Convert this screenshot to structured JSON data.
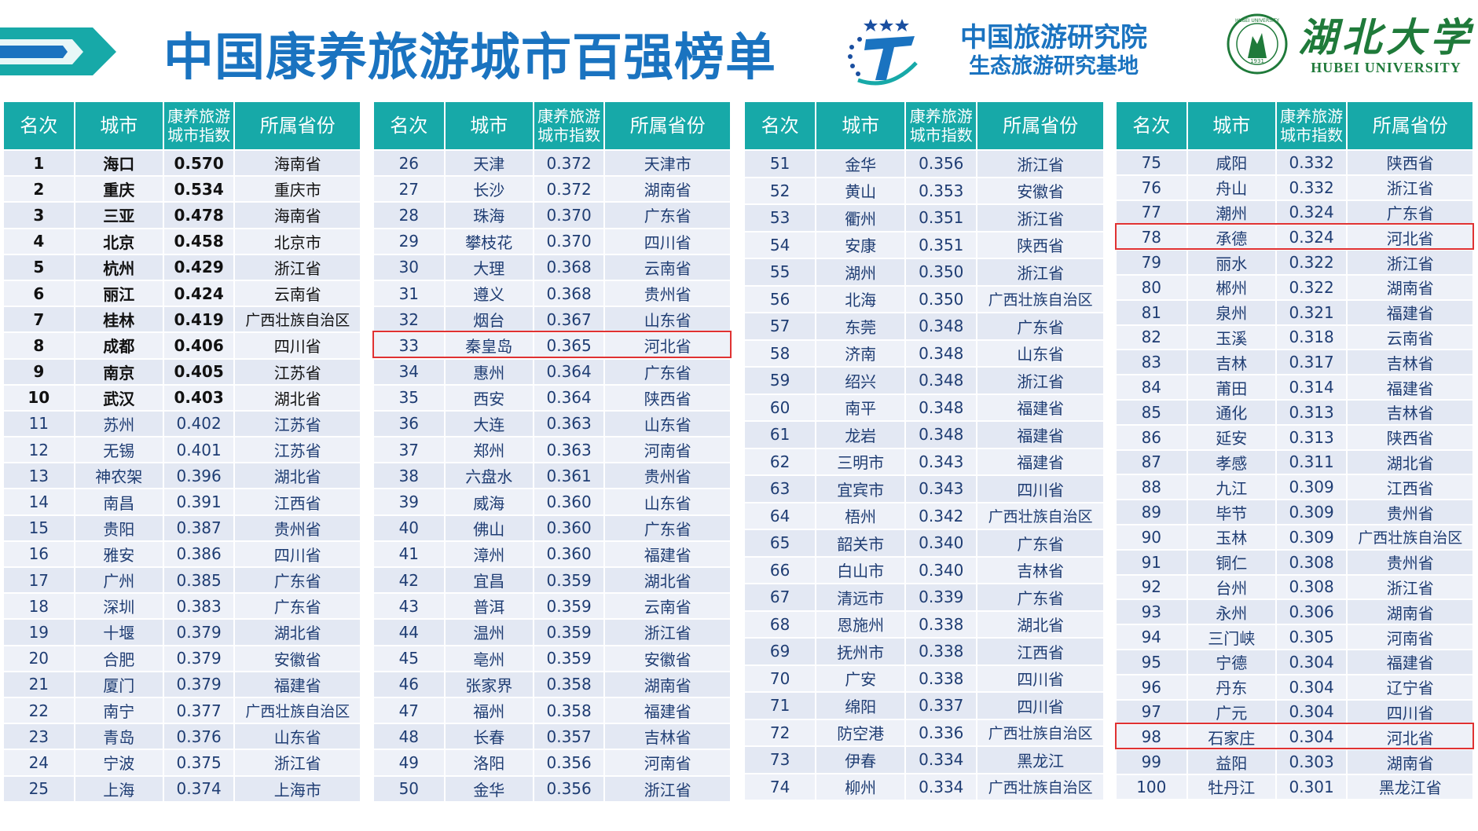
{
  "header": {
    "title": "中国康养旅游城市百强榜单",
    "institute_line1": "中国旅游研究院",
    "institute_line2": "生态旅游研究基地",
    "university_cn": "湖北大学",
    "university_en": "HUBEI UNIVERSITY",
    "seal_text": "HUBEI UNIVERSITY",
    "seal_year": "1931"
  },
  "colors": {
    "title": "#1a73c0",
    "header_bg": "#17a9a8",
    "highlight": "#e03232",
    "university": "#1f7a3a"
  },
  "table_headers": {
    "rank": "名次",
    "city": "城市",
    "index": "康养旅游城市指数",
    "province": "所属省份"
  },
  "rows": [
    [
      "1",
      "海口",
      "0.570",
      "海南省"
    ],
    [
      "2",
      "重庆",
      "0.534",
      "重庆市"
    ],
    [
      "3",
      "三亚",
      "0.478",
      "海南省"
    ],
    [
      "4",
      "北京",
      "0.458",
      "北京市"
    ],
    [
      "5",
      "杭州",
      "0.429",
      "浙江省"
    ],
    [
      "6",
      "丽江",
      "0.424",
      "云南省"
    ],
    [
      "7",
      "桂林",
      "0.419",
      "广西壮族自治区"
    ],
    [
      "8",
      "成都",
      "0.406",
      "四川省"
    ],
    [
      "9",
      "南京",
      "0.405",
      "江苏省"
    ],
    [
      "10",
      "武汉",
      "0.403",
      "湖北省"
    ],
    [
      "11",
      "苏州",
      "0.402",
      "江苏省"
    ],
    [
      "12",
      "无锡",
      "0.401",
      "江苏省"
    ],
    [
      "13",
      "神农架",
      "0.396",
      "湖北省"
    ],
    [
      "14",
      "南昌",
      "0.391",
      "江西省"
    ],
    [
      "15",
      "贵阳",
      "0.387",
      "贵州省"
    ],
    [
      "16",
      "雅安",
      "0.386",
      "四川省"
    ],
    [
      "17",
      "广州",
      "0.385",
      "广东省"
    ],
    [
      "18",
      "深圳",
      "0.383",
      "广东省"
    ],
    [
      "19",
      "十堰",
      "0.379",
      "湖北省"
    ],
    [
      "20",
      "合肥",
      "0.379",
      "安徽省"
    ],
    [
      "21",
      "厦门",
      "0.379",
      "福建省"
    ],
    [
      "22",
      "南宁",
      "0.377",
      "广西壮族自治区"
    ],
    [
      "23",
      "青岛",
      "0.376",
      "山东省"
    ],
    [
      "24",
      "宁波",
      "0.375",
      "浙江省"
    ],
    [
      "25",
      "上海",
      "0.374",
      "上海市"
    ],
    [
      "26",
      "天津",
      "0.372",
      "天津市"
    ],
    [
      "27",
      "长沙",
      "0.372",
      "湖南省"
    ],
    [
      "28",
      "珠海",
      "0.370",
      "广东省"
    ],
    [
      "29",
      "攀枝花",
      "0.370",
      "四川省"
    ],
    [
      "30",
      "大理",
      "0.368",
      "云南省"
    ],
    [
      "31",
      "遵义",
      "0.368",
      "贵州省"
    ],
    [
      "32",
      "烟台",
      "0.367",
      "山东省"
    ],
    [
      "33",
      "秦皇岛",
      "0.365",
      "河北省"
    ],
    [
      "34",
      "惠州",
      "0.364",
      "广东省"
    ],
    [
      "35",
      "西安",
      "0.364",
      "陕西省"
    ],
    [
      "36",
      "大连",
      "0.363",
      "山东省"
    ],
    [
      "37",
      "郑州",
      "0.363",
      "河南省"
    ],
    [
      "38",
      "六盘水",
      "0.361",
      "贵州省"
    ],
    [
      "39",
      "威海",
      "0.360",
      "山东省"
    ],
    [
      "40",
      "佛山",
      "0.360",
      "广东省"
    ],
    [
      "41",
      "漳州",
      "0.360",
      "福建省"
    ],
    [
      "42",
      "宜昌",
      "0.359",
      "湖北省"
    ],
    [
      "43",
      "普洱",
      "0.359",
      "云南省"
    ],
    [
      "44",
      "温州",
      "0.359",
      "浙江省"
    ],
    [
      "45",
      "亳州",
      "0.359",
      "安徽省"
    ],
    [
      "46",
      "张家界",
      "0.358",
      "湖南省"
    ],
    [
      "47",
      "福州",
      "0.358",
      "福建省"
    ],
    [
      "48",
      "长春",
      "0.357",
      "吉林省"
    ],
    [
      "49",
      "洛阳",
      "0.356",
      "河南省"
    ],
    [
      "50",
      "金华",
      "0.356",
      "浙江省"
    ],
    [
      "51",
      "金华",
      "0.356",
      "浙江省"
    ],
    [
      "52",
      "黄山",
      "0.353",
      "安徽省"
    ],
    [
      "53",
      "衢州",
      "0.351",
      "浙江省"
    ],
    [
      "54",
      "安康",
      "0.351",
      "陕西省"
    ],
    [
      "55",
      "湖州",
      "0.350",
      "浙江省"
    ],
    [
      "56",
      "北海",
      "0.350",
      "广西壮族自治区"
    ],
    [
      "57",
      "东莞",
      "0.348",
      "广东省"
    ],
    [
      "58",
      "济南",
      "0.348",
      "山东省"
    ],
    [
      "59",
      "绍兴",
      "0.348",
      "浙江省"
    ],
    [
      "60",
      "南平",
      "0.348",
      "福建省"
    ],
    [
      "61",
      "龙岩",
      "0.348",
      "福建省"
    ],
    [
      "62",
      "三明市",
      "0.343",
      "福建省"
    ],
    [
      "63",
      "宜宾市",
      "0.343",
      "四川省"
    ],
    [
      "64",
      "梧州",
      "0.342",
      "广西壮族自治区"
    ],
    [
      "65",
      "韶关市",
      "0.340",
      "广东省"
    ],
    [
      "66",
      "白山市",
      "0.340",
      "吉林省"
    ],
    [
      "67",
      "清远市",
      "0.339",
      "广东省"
    ],
    [
      "68",
      "恩施州",
      "0.338",
      "湖北省"
    ],
    [
      "69",
      "抚州市",
      "0.338",
      "江西省"
    ],
    [
      "70",
      "广安",
      "0.338",
      "四川省"
    ],
    [
      "71",
      "绵阳",
      "0.337",
      "四川省"
    ],
    [
      "72",
      "防空港",
      "0.336",
      "广西壮族自治区"
    ],
    [
      "73",
      "伊春",
      "0.334",
      "黑龙江"
    ],
    [
      "74",
      "柳州",
      "0.334",
      "广西壮族自治区"
    ],
    [
      "75",
      "咸阳",
      "0.332",
      "陕西省"
    ],
    [
      "76",
      "舟山",
      "0.332",
      "浙江省"
    ],
    [
      "77",
      "潮州",
      "0.324",
      "广东省"
    ],
    [
      "78",
      "承德",
      "0.324",
      "河北省"
    ],
    [
      "79",
      "丽水",
      "0.322",
      "浙江省"
    ],
    [
      "80",
      "郴州",
      "0.322",
      "湖南省"
    ],
    [
      "81",
      "泉州",
      "0.321",
      "福建省"
    ],
    [
      "82",
      "玉溪",
      "0.318",
      "云南省"
    ],
    [
      "83",
      "吉林",
      "0.317",
      "吉林省"
    ],
    [
      "84",
      "莆田",
      "0.314",
      "福建省"
    ],
    [
      "85",
      "通化",
      "0.313",
      "吉林省"
    ],
    [
      "86",
      "延安",
      "0.313",
      "陕西省"
    ],
    [
      "87",
      "孝感",
      "0.311",
      "湖北省"
    ],
    [
      "88",
      "九江",
      "0.309",
      "江西省"
    ],
    [
      "89",
      "毕节",
      "0.309",
      "贵州省"
    ],
    [
      "90",
      "玉林",
      "0.309",
      "广西壮族自治区"
    ],
    [
      "91",
      "铜仁",
      "0.308",
      "贵州省"
    ],
    [
      "92",
      "台州",
      "0.308",
      "浙江省"
    ],
    [
      "93",
      "永州",
      "0.306",
      "湖南省"
    ],
    [
      "94",
      "三门峡",
      "0.305",
      "河南省"
    ],
    [
      "95",
      "宁德",
      "0.304",
      "福建省"
    ],
    [
      "96",
      "丹东",
      "0.304",
      "辽宁省"
    ],
    [
      "97",
      "广元",
      "0.304",
      "四川省"
    ],
    [
      "98",
      "石家庄",
      "0.304",
      "河北省"
    ],
    [
      "99",
      "益阳",
      "0.303",
      "湖南省"
    ],
    [
      "100",
      "牡丹江",
      "0.301",
      "黑龙江省"
    ]
  ],
  "highlighted_ranks": [
    "33",
    "78",
    "98"
  ]
}
